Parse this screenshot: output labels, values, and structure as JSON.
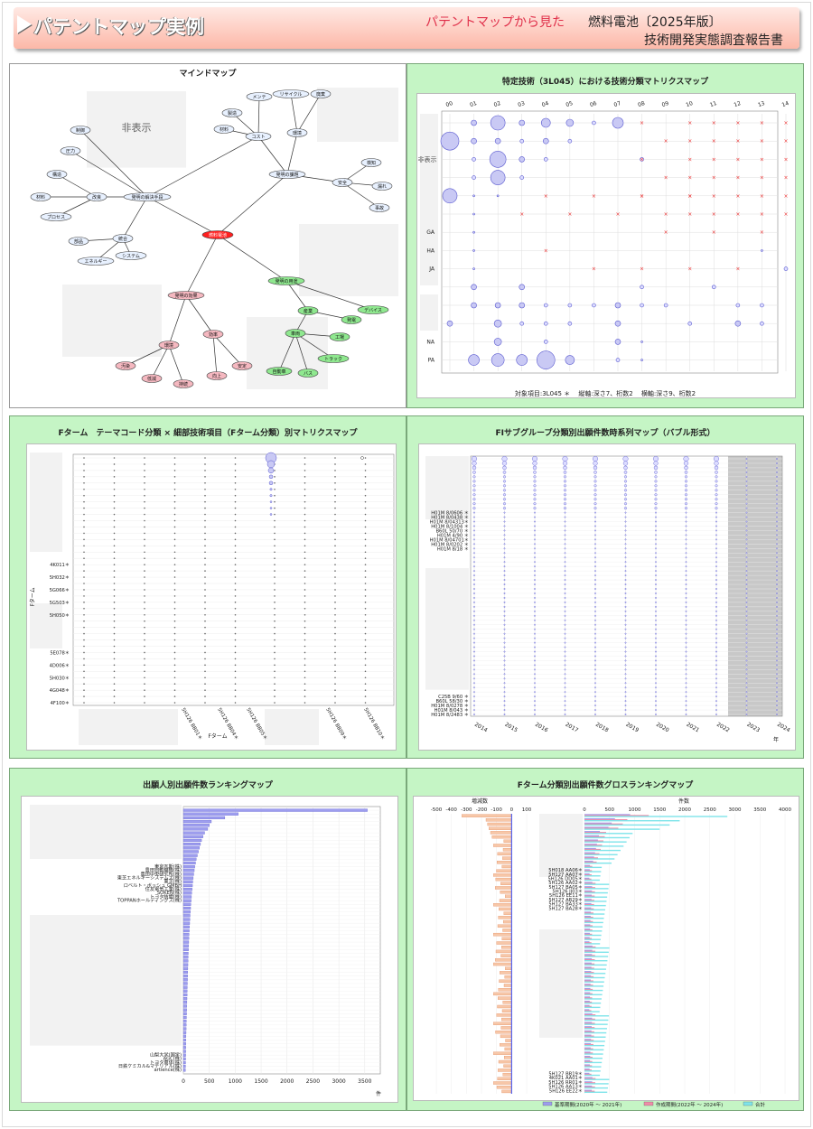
{
  "header": {
    "title": "パテントマップ実例",
    "subtitle": "パテントマップから見た",
    "right1": "燃料電池〔2025年版〕",
    "right2": "技術開発実態調査報告書"
  },
  "panel1": {
    "title": "マインドマップ",
    "hidden": "非表示",
    "nodes": [
      {
        "id": "center",
        "label": "燃料電池",
        "type": "red"
      },
      {
        "id": "a",
        "label": "発明の解決手段",
        "type": "blue"
      },
      {
        "id": "b",
        "label": "発明の課題",
        "type": "blue"
      },
      {
        "id": "c",
        "label": "発明の効果",
        "type": "pink"
      },
      {
        "id": "d",
        "label": "発明の用途",
        "type": "green"
      },
      {
        "id": "a1",
        "label": "改良",
        "type": "blue"
      },
      {
        "id": "a2",
        "label": "統合",
        "type": "blue"
      },
      {
        "id": "a3",
        "label": "構造",
        "type": "blue"
      },
      {
        "id": "a4",
        "label": "材料",
        "type": "blue"
      },
      {
        "id": "a5",
        "label": "プロセス",
        "type": "blue"
      },
      {
        "id": "a6",
        "label": "制御",
        "type": "blue"
      },
      {
        "id": "a7",
        "label": "圧力",
        "type": "blue"
      },
      {
        "id": "a8",
        "label": "部品",
        "type": "blue"
      },
      {
        "id": "a9",
        "label": "エネルギー",
        "type": "blue"
      },
      {
        "id": "a10",
        "label": "システム",
        "type": "blue"
      },
      {
        "id": "b1",
        "label": "コスト",
        "type": "blue"
      },
      {
        "id": "b2",
        "label": "環境",
        "type": "blue"
      },
      {
        "id": "b3",
        "label": "安全",
        "type": "blue"
      },
      {
        "id": "b4",
        "label": "製造",
        "type": "blue"
      },
      {
        "id": "b5",
        "label": "材料",
        "type": "blue"
      },
      {
        "id": "b6",
        "label": "メンテ",
        "type": "blue"
      },
      {
        "id": "b7",
        "label": "リサイクル",
        "type": "blue"
      },
      {
        "id": "b8",
        "label": "廃棄",
        "type": "blue"
      },
      {
        "id": "b9",
        "label": "検知",
        "type": "blue"
      },
      {
        "id": "b10",
        "label": "漏れ",
        "type": "blue"
      },
      {
        "id": "b11",
        "label": "事故",
        "type": "blue"
      },
      {
        "id": "c1",
        "label": "環境",
        "type": "pink"
      },
      {
        "id": "c2",
        "label": "効率",
        "type": "pink"
      },
      {
        "id": "c3",
        "label": "汚染",
        "type": "pink"
      },
      {
        "id": "c4",
        "label": "低減",
        "type": "pink"
      },
      {
        "id": "c5",
        "label": "持続",
        "type": "pink"
      },
      {
        "id": "c6",
        "label": "向上",
        "type": "pink"
      },
      {
        "id": "c7",
        "label": "安定",
        "type": "pink"
      },
      {
        "id": "d1",
        "label": "産業",
        "type": "green"
      },
      {
        "id": "d2",
        "label": "車両",
        "type": "green"
      },
      {
        "id": "d3",
        "label": "デバイス",
        "type": "green"
      },
      {
        "id": "d4",
        "label": "発電",
        "type": "green"
      },
      {
        "id": "d5",
        "label": "工場",
        "type": "green"
      },
      {
        "id": "d6",
        "label": "トラック",
        "type": "green"
      },
      {
        "id": "d7",
        "label": "自動車",
        "type": "green"
      },
      {
        "id": "d8",
        "label": "バス",
        "type": "green"
      }
    ]
  },
  "panel2": {
    "title": "特定技術（3L045）における技術分類マトリクスマップ",
    "cols": [
      "00",
      "01",
      "02",
      "03",
      "04",
      "05",
      "06",
      "07",
      "08",
      "09",
      "10",
      "11",
      "12",
      "13",
      "14"
    ],
    "rowlabels": [
      "",
      "",
      "",
      "",
      "",
      "",
      "GA",
      "HA",
      "JA",
      "",
      "",
      "",
      "NA",
      "PA"
    ],
    "hidden": "非表示",
    "footer": "対象項目:3L045 ＊　 縦軸:深さ7、桁数2　 横軸:深さ9、桁数2"
  },
  "panel3": {
    "title": "Fターム　テーマコード分類 × 細部技術項目（Fターム分類）別マトリクスマップ",
    "ylabels": [
      "4K011＊",
      "5H032＊",
      "5G066＊",
      "5G503＊",
      "5H050＊",
      "5E078＊",
      "4D006＊",
      "5H030＊",
      "4G048＊",
      "4F100＊"
    ],
    "xlabels": [
      "5H126 BB01＊",
      "5H126 BB04＊",
      "5H126 BB05＊",
      "5H126 BB09＊",
      "5H126 BB10＊"
    ],
    "yaxis": "Fターム",
    "xaxis": "Fターム"
  },
  "panel4": {
    "title": "FIサブグループ分類別出願件数時系列マップ（バブル形式）",
    "ylabels_top": [
      "H01M 8/0606 ＊",
      "H01M 8/0438 ＊",
      "H01M 8/04313＊",
      "H01M 8/1004 ＊",
      "B60L 50/70 ＊",
      "H01M 4/90 ＊",
      "H01M 8/04701＊",
      "H01M 8/0202 ＊",
      "H01M 8/18 ＊"
    ],
    "ylabels_bot": [
      "C25B 9/60 ＊",
      "B60L 58/30 ＊",
      "H01M 8/0278 ＊",
      "H01M 8/043 ＊",
      "H01M 8/2483 ＊"
    ],
    "years": [
      "2014",
      "2015",
      "2016",
      "2017",
      "2018",
      "2019",
      "2020",
      "2021",
      "2022",
      "2023",
      "2024"
    ],
    "unit": "年"
  },
  "panel5": {
    "title": "出願人別出願件数ランキングマップ",
    "names_top": [
      "東京瓦斯(株)",
      "豊田自動織機(株)",
      "豊田中央研究所(株)",
      "東芝エネルギーシステムズ(株)",
      "東芝(株)",
      "ロベルト・ボッシュ GMBH",
      "住友電気工業(株)",
      "SOKEN(株)",
      "トヨタ紡織(株)",
      "TOPPANホールディングス(株)"
    ],
    "names_bot": [
      "山梨大学(国学)",
      "AGC(株)",
      "トヨタ車体(株)",
      "日鉄ケミカル&マテリアル(株)",
      "artience(株)"
    ],
    "xticks": [
      "0",
      "500",
      "1000",
      "1500",
      "2000",
      "2500",
      "3000",
      "3500"
    ],
    "unit": "件"
  },
  "panel6": {
    "title": "Fターム分類別出願件数グロスランキングマップ",
    "left_axis_label": "増減数",
    "left_ticks": [
      "-500",
      "-400",
      "-300",
      "-200",
      "-100",
      "0",
      "100"
    ],
    "right_axis_label": "件数",
    "right_ticks": [
      "0",
      "500",
      "1000",
      "1500",
      "2000",
      "2500",
      "3000",
      "3500",
      "4000"
    ],
    "labels_mid": [
      "5H018 AA06＊",
      "5H127 AA07＊",
      "5H126 DD05＊",
      "5H126 AA02＊",
      "5H127 BA05＊",
      "5H126 JJ03＊",
      "5H126 EE11＊",
      "5H127 AB29＊",
      "5H127 BA33＊",
      "5H127 BA28＊"
    ],
    "labels_bot": [
      "5H127 BB19＊",
      "4K021 AA01＊",
      "5H126 RR01＊",
      "5H126 AA13＊",
      "5H126 EE22＊"
    ],
    "legend": [
      "基準期間(2020年 ～ 2021年)",
      "作成期間(2022年 ～ 2024年)",
      "合計"
    ]
  }
}
